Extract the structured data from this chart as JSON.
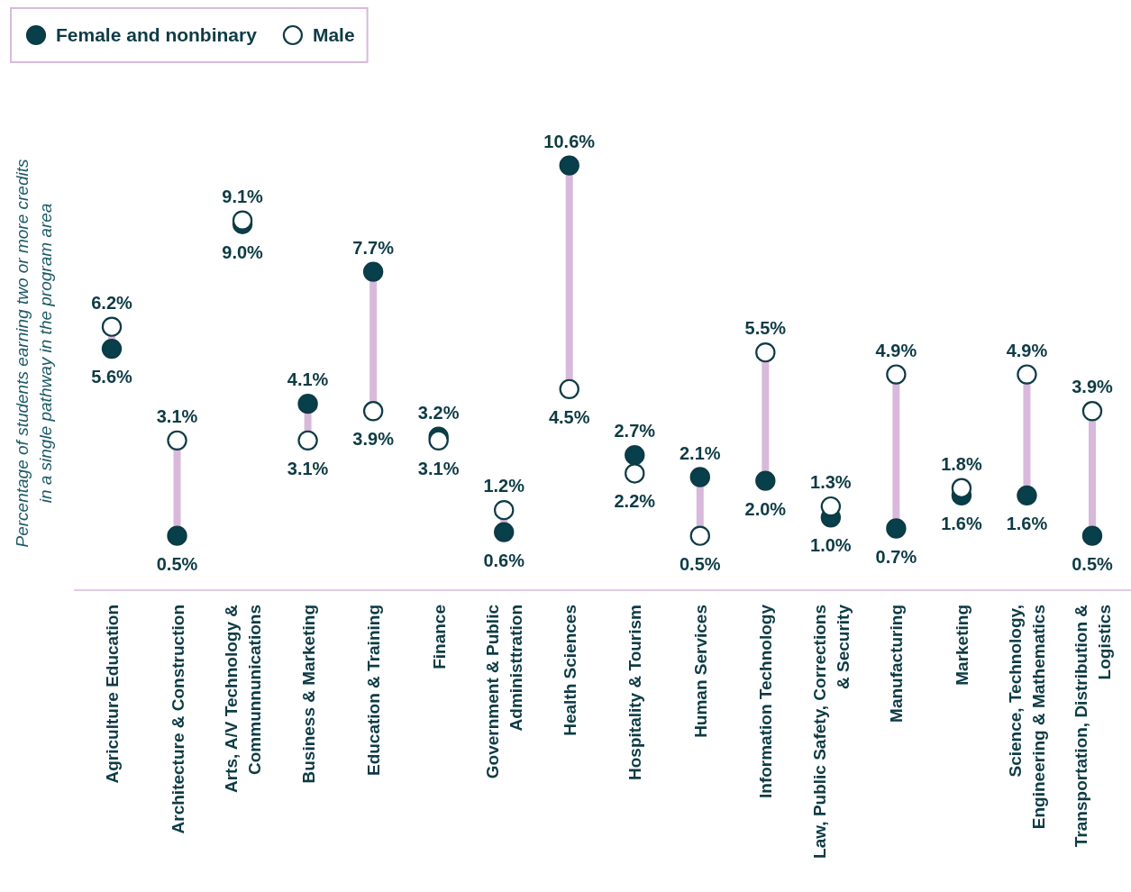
{
  "chart_data": {
    "type": "scatter",
    "ylabel": "Percentage of students earning two or more credits\nin a single pathway in the program area",
    "categories": [
      "Agriculture Education",
      "Architecture & Construction",
      "Arts, A/V Technology &\nCommunnunications",
      "Business & Marketing",
      "Education & Training",
      "Finance",
      "Government & Public\nAdministtration",
      "Health Sciences",
      "Hospitality & Tourism",
      "Human Services",
      "Information Technology",
      "Law, Public Safety, Corrections\n& Security",
      "Manufacturing",
      "Marketing",
      "Science, Technology,\nEngineering & Mathematics",
      "Transportation, Distribution &\nLogistics"
    ],
    "series": [
      {
        "name": "Female and nonbinary",
        "color": "#073f4a",
        "values": [
          5.6,
          0.5,
          9.0,
          4.1,
          7.7,
          3.2,
          0.6,
          10.6,
          2.7,
          2.1,
          2.0,
          1.0,
          0.7,
          1.6,
          1.6,
          0.5
        ],
        "value_labels": [
          "5.6%",
          "0.5%",
          "9.0%",
          "4.1%",
          "7.7%",
          "3.2%",
          "0.6%",
          "10.6%",
          "2.7%",
          "2.1%",
          "2.0%",
          "1.0%",
          "0.7%",
          "1.6%",
          "1.6%",
          "0.5%"
        ]
      },
      {
        "name": "Male",
        "color": "#ffffff",
        "values": [
          6.2,
          3.1,
          9.1,
          3.1,
          3.9,
          3.1,
          1.2,
          4.5,
          2.2,
          0.5,
          5.5,
          1.3,
          4.9,
          1.8,
          4.9,
          3.9
        ],
        "value_labels": [
          "6.2%",
          "3.1%",
          "9.1%",
          "3.1%",
          "3.9%",
          "3.1%",
          "1.2%",
          "4.5%",
          "2.2%",
          "0.5%",
          "5.5%",
          "1.3%",
          "4.9%",
          "1.8%",
          "4.9%",
          "3.9%"
        ]
      }
    ],
    "legend": "top left",
    "marker": "circle"
  }
}
